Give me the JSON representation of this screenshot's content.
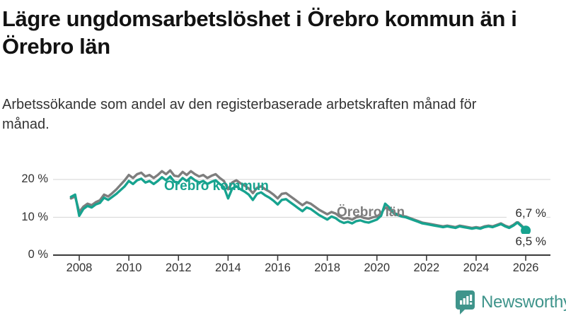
{
  "chart_data": {
    "type": "line",
    "title": "Lägre ungdomsarbetslöshet i Örebro kommun än i Örebro län",
    "subtitle": "Arbetssökande som andel av den registerbaserade arbetskraften månad för månad.",
    "unit": "%",
    "x_start": 2007.6667,
    "x_step": 0.16667,
    "x_ticks": [
      2008,
      2010,
      2012,
      2014,
      2016,
      2018,
      2020,
      2022,
      2024,
      2026
    ],
    "ylim": [
      0,
      24
    ],
    "y_ticks": [
      {
        "label": "0 %",
        "value": 0
      },
      {
        "label": "10 %",
        "value": 10
      },
      {
        "label": "20 %",
        "value": 20
      }
    ],
    "grid": "horizontal",
    "legend_position": "inline-labels",
    "series": [
      {
        "name": "Örebro kommun",
        "color": "#17a38f",
        "end_label": "6,5 %",
        "end_value": 6.5,
        "values": [
          15.4,
          16.0,
          10.4,
          12.2,
          13.0,
          12.6,
          13.4,
          13.8,
          15.2,
          14.6,
          15.4,
          16.2,
          17.2,
          18.2,
          19.6,
          18.8,
          19.8,
          20.2,
          19.2,
          19.6,
          18.8,
          19.6,
          20.6,
          19.8,
          20.8,
          19.4,
          19.2,
          20.4,
          19.6,
          20.6,
          19.8,
          19.2,
          19.6,
          18.8,
          19.4,
          19.8,
          18.8,
          18.0,
          15.0,
          17.6,
          18.2,
          17.4,
          16.8,
          16.0,
          14.6,
          16.2,
          16.6,
          15.8,
          15.2,
          14.4,
          13.4,
          14.6,
          14.8,
          14.0,
          13.2,
          12.4,
          11.6,
          12.6,
          12.2,
          11.4,
          10.6,
          10.0,
          9.4,
          10.2,
          9.8,
          9.0,
          8.5,
          8.8,
          8.4,
          9.0,
          9.2,
          8.8,
          8.6,
          9.0,
          9.4,
          10.4,
          13.6,
          12.6,
          11.2,
          10.6,
          10.2,
          10.0,
          9.6,
          9.2,
          8.8,
          8.4,
          8.2,
          8.0,
          7.8,
          7.6,
          7.4,
          7.6,
          7.4,
          7.2,
          7.6,
          7.4,
          7.2,
          7.0,
          7.2,
          7.0,
          7.4,
          7.6,
          7.4,
          7.8,
          8.2,
          7.6,
          7.2,
          7.8,
          8.6,
          7.6,
          6.5
        ]
      },
      {
        "name": "Örebro län",
        "color": "#7e7e7e",
        "end_label": "6,7 %",
        "end_value": 6.7,
        "values": [
          15.0,
          15.5,
          11.4,
          12.8,
          13.6,
          13.2,
          14.0,
          14.5,
          16.0,
          15.5,
          16.4,
          17.4,
          18.6,
          19.8,
          21.2,
          20.4,
          21.4,
          21.8,
          20.8,
          21.2,
          20.4,
          21.2,
          22.2,
          21.4,
          22.4,
          21.0,
          20.8,
          22.0,
          21.2,
          22.2,
          21.4,
          20.8,
          21.2,
          20.4,
          21.0,
          21.4,
          20.4,
          19.6,
          17.4,
          19.2,
          19.8,
          19.0,
          18.4,
          17.6,
          16.4,
          17.8,
          18.2,
          17.4,
          16.8,
          16.0,
          15.0,
          16.2,
          16.4,
          15.6,
          14.8,
          14.0,
          13.2,
          14.0,
          13.6,
          12.8,
          12.0,
          11.4,
          10.8,
          11.4,
          11.0,
          10.2,
          9.6,
          9.8,
          9.4,
          10.0,
          10.2,
          9.8,
          9.6,
          10.0,
          10.2,
          11.0,
          12.6,
          12.0,
          11.2,
          10.8,
          10.4,
          10.2,
          9.8,
          9.4,
          9.0,
          8.6,
          8.4,
          8.2,
          8.0,
          7.8,
          7.6,
          7.8,
          7.6,
          7.4,
          7.8,
          7.6,
          7.4,
          7.2,
          7.4,
          7.2,
          7.6,
          7.8,
          7.6,
          8.0,
          8.4,
          7.8,
          7.4,
          8.0,
          8.8,
          7.8,
          6.7
        ]
      }
    ],
    "colors": {
      "grid": "#dcdcdc",
      "axis": "#3a3a3a",
      "axis_text": "#333333",
      "title_text": "#121212",
      "subtitle_text": "#333333"
    }
  },
  "branding": {
    "name": "Newsworthy",
    "color": "#3f948b"
  }
}
